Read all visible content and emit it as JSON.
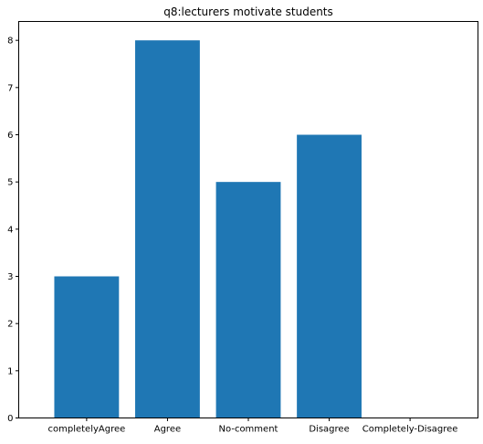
{
  "chart_data": {
    "type": "bar",
    "title": "q8:lecturers motivate students",
    "xlabel": "",
    "ylabel": "",
    "categories": [
      "completelyAgree",
      "Agree",
      "No-comment",
      "Disagree",
      "Completely-Disagree"
    ],
    "values": [
      3,
      8,
      5,
      6,
      0
    ],
    "ylim": [
      0,
      8.4
    ],
    "yticks": [
      0,
      1,
      2,
      3,
      4,
      5,
      6,
      7,
      8
    ],
    "bar_color": "#1f77b4",
    "grid": false,
    "legend": "none"
  }
}
